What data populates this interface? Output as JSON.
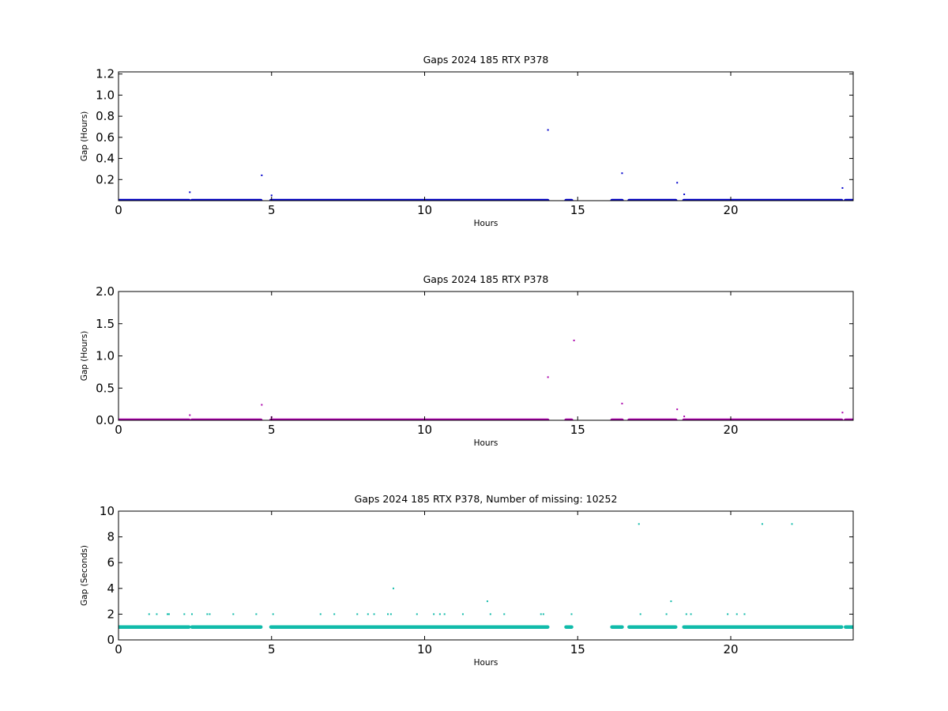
{
  "chart_data": [
    {
      "type": "scatter",
      "title": "Gaps 2024 185 RTX  P378",
      "xlabel": "Hours",
      "ylabel": "Gap (Hours)",
      "xlim": [
        0,
        24
      ],
      "ylim": [
        0,
        1.22
      ],
      "x_ticks": [
        "0",
        "5",
        "10",
        "15",
        "20"
      ],
      "x_tick_values": [
        0,
        5,
        10,
        15,
        20
      ],
      "y_ticks": [
        "0.2",
        "0.4",
        "0.6",
        "0.8",
        "1.0",
        "1.2"
      ],
      "y_tick_values": [
        0.2,
        0.4,
        0.6,
        0.8,
        1.0,
        1.2
      ],
      "color": "#0000cc",
      "baseline_value": 0.0003,
      "baseline_segments": [
        [
          0,
          2.3
        ],
        [
          2.4,
          4.65
        ],
        [
          4.98,
          14.02
        ],
        [
          14.62,
          14.8
        ],
        [
          16.12,
          16.45
        ],
        [
          16.68,
          18.2
        ],
        [
          18.47,
          23.62
        ],
        [
          23.75,
          24
        ]
      ],
      "points": [
        {
          "x": 2.33,
          "y": 0.08
        },
        {
          "x": 4.68,
          "y": 0.24
        },
        {
          "x": 5.0,
          "y": 0.05
        },
        {
          "x": 14.03,
          "y": 0.67
        },
        {
          "x": 16.45,
          "y": 0.26
        },
        {
          "x": 18.25,
          "y": 0.17
        },
        {
          "x": 18.48,
          "y": 0.06
        },
        {
          "x": 23.65,
          "y": 0.12
        }
      ]
    },
    {
      "type": "scatter",
      "title": "Gaps 2024 185 RTX  P378",
      "xlabel": "Hours",
      "ylabel": "Gap (Hours)",
      "xlim": [
        0,
        24
      ],
      "ylim": [
        0,
        2.0
      ],
      "x_ticks": [
        "0",
        "5",
        "10",
        "15",
        "20"
      ],
      "x_tick_values": [
        0,
        5,
        10,
        15,
        20
      ],
      "y_ticks": [
        "0.0",
        "0.5",
        "1.0",
        "1.5",
        "2.0"
      ],
      "y_tick_values": [
        0,
        0.5,
        1.0,
        1.5,
        2.0
      ],
      "color": "#aa00aa",
      "baseline_value": 0.0003,
      "baseline_segments": [
        [
          0,
          2.3
        ],
        [
          2.4,
          4.65
        ],
        [
          4.98,
          14.02
        ],
        [
          14.62,
          14.8
        ],
        [
          16.12,
          16.45
        ],
        [
          16.68,
          18.2
        ],
        [
          18.47,
          23.62
        ],
        [
          23.75,
          24
        ]
      ],
      "points": [
        {
          "x": 2.33,
          "y": 0.08
        },
        {
          "x": 4.68,
          "y": 0.24
        },
        {
          "x": 5.0,
          "y": 0.05
        },
        {
          "x": 14.03,
          "y": 0.67
        },
        {
          "x": 14.88,
          "y": 1.24
        },
        {
          "x": 16.45,
          "y": 0.26
        },
        {
          "x": 18.25,
          "y": 0.17
        },
        {
          "x": 18.48,
          "y": 0.06
        },
        {
          "x": 23.65,
          "y": 0.12
        }
      ]
    },
    {
      "type": "scatter",
      "title": "Gaps 2024 185 RTX  P378, Number of missing: 10252",
      "xlabel": "Hours",
      "ylabel": "Gap (Seconds)",
      "xlim": [
        0,
        24
      ],
      "ylim": [
        0,
        10
      ],
      "x_ticks": [
        "0",
        "5",
        "10",
        "15",
        "20"
      ],
      "x_tick_values": [
        0,
        5,
        10,
        15,
        20
      ],
      "y_ticks": [
        "0",
        "2",
        "4",
        "6",
        "8",
        "10"
      ],
      "y_tick_values": [
        0,
        2,
        4,
        6,
        8,
        10
      ],
      "color": "#11bbaa",
      "baseline_value": 1,
      "baseline_segments": [
        [
          0,
          2.3
        ],
        [
          2.4,
          4.65
        ],
        [
          4.98,
          14.02
        ],
        [
          14.62,
          14.8
        ],
        [
          16.12,
          16.45
        ],
        [
          16.68,
          18.2
        ],
        [
          18.47,
          23.62
        ],
        [
          23.75,
          24
        ]
      ],
      "points": [
        {
          "x": 1.0,
          "y": 2
        },
        {
          "x": 1.25,
          "y": 2
        },
        {
          "x": 1.6,
          "y": 2
        },
        {
          "x": 1.65,
          "y": 2
        },
        {
          "x": 2.15,
          "y": 2
        },
        {
          "x": 2.4,
          "y": 2
        },
        {
          "x": 2.9,
          "y": 2
        },
        {
          "x": 2.98,
          "y": 2
        },
        {
          "x": 3.75,
          "y": 2
        },
        {
          "x": 4.5,
          "y": 2
        },
        {
          "x": 5.05,
          "y": 2
        },
        {
          "x": 6.6,
          "y": 2
        },
        {
          "x": 7.05,
          "y": 2
        },
        {
          "x": 7.8,
          "y": 2
        },
        {
          "x": 8.15,
          "y": 2
        },
        {
          "x": 8.35,
          "y": 2
        },
        {
          "x": 8.8,
          "y": 2
        },
        {
          "x": 8.9,
          "y": 2
        },
        {
          "x": 8.98,
          "y": 4
        },
        {
          "x": 9.75,
          "y": 2
        },
        {
          "x": 10.3,
          "y": 2
        },
        {
          "x": 10.5,
          "y": 2
        },
        {
          "x": 10.65,
          "y": 2
        },
        {
          "x": 11.25,
          "y": 2
        },
        {
          "x": 12.05,
          "y": 3
        },
        {
          "x": 12.15,
          "y": 2
        },
        {
          "x": 12.6,
          "y": 2
        },
        {
          "x": 13.8,
          "y": 2
        },
        {
          "x": 13.88,
          "y": 2
        },
        {
          "x": 14.8,
          "y": 2
        },
        {
          "x": 17.0,
          "y": 9
        },
        {
          "x": 17.05,
          "y": 2
        },
        {
          "x": 17.9,
          "y": 2
        },
        {
          "x": 18.05,
          "y": 3
        },
        {
          "x": 18.55,
          "y": 2
        },
        {
          "x": 18.7,
          "y": 2
        },
        {
          "x": 19.9,
          "y": 2
        },
        {
          "x": 20.2,
          "y": 2
        },
        {
          "x": 20.45,
          "y": 2
        },
        {
          "x": 21.03,
          "y": 9
        },
        {
          "x": 22.0,
          "y": 9
        }
      ]
    }
  ]
}
